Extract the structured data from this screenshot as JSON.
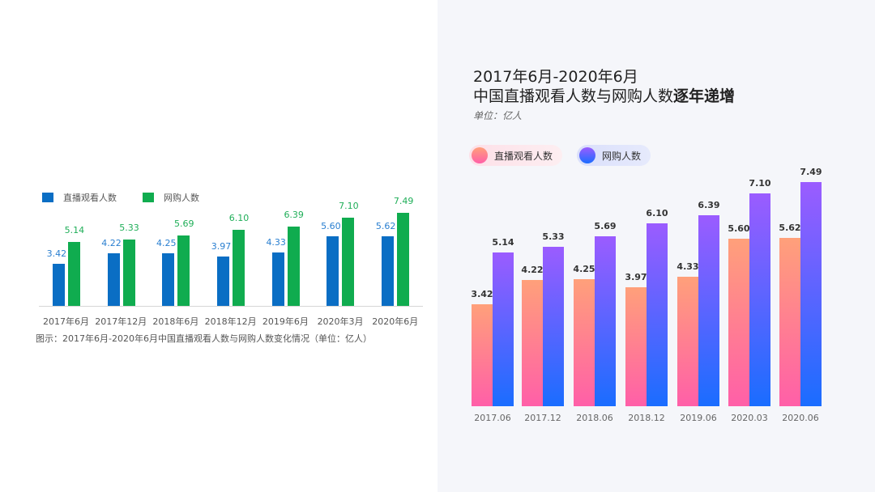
{
  "left_chart": {
    "legend": [
      {
        "label": "直播观看人数",
        "color": "#0a6ec4"
      },
      {
        "label": "网购人数",
        "color": "#10ac4f"
      }
    ],
    "value_colors": {
      "live": "#2a7fd0",
      "shop": "#1fae58"
    },
    "caption": "图示：2017年6月-2020年6月中国直播观看人数与网购人数变化情况（单位：亿人）"
  },
  "right_chart": {
    "title_line1": "2017年6月-2020年6月",
    "title_line2_normal": "中国直播观看人数与网购人数",
    "title_line2_bold": "逐年递增",
    "unit": "单位：亿人",
    "legend": [
      {
        "label": "直播观看人数",
        "gradient_top": "#ffa07a",
        "gradient_bottom": "#ff5fa8",
        "pill_bg": "#fde4ea"
      },
      {
        "label": "网购人数",
        "gradient_top": "#9b5cff",
        "gradient_bottom": "#1a6dff",
        "pill_bg": "#dfe4fb"
      }
    ]
  },
  "chart_data": [
    {
      "type": "bar",
      "title": "",
      "categories": [
        "2017年6月",
        "2017年12月",
        "2018年6月",
        "2018年12月",
        "2019年6月",
        "2020年3月",
        "2020年6月"
      ],
      "series": [
        {
          "name": "直播观看人数",
          "values": [
            "3.42",
            "4.22",
            "4.25",
            "3.97",
            "4.33",
            "5.60",
            "5.62"
          ]
        },
        {
          "name": "网购人数",
          "values": [
            "5.14",
            "5.33",
            "5.69",
            "6.10",
            "6.39",
            "7.10",
            "7.49"
          ]
        }
      ],
      "xlabel": "",
      "ylabel": "",
      "caption": "图示：2017年6月-2020年6月中国直播观看人数与网购人数变化情况（单位：亿人）",
      "legend_position": "top-left",
      "grid": false
    },
    {
      "type": "bar",
      "title": "2017年6月-2020年6月 中国直播观看人数与网购人数逐年递增",
      "subtitle": "单位：亿人",
      "categories": [
        "2017.06",
        "2017.12",
        "2018.06",
        "2018.12",
        "2019.06",
        "2020.03",
        "2020.06"
      ],
      "series": [
        {
          "name": "直播观看人数",
          "values": [
            "3.42",
            "4.22",
            "4.25",
            "3.97",
            "4.33",
            "5.60",
            "5.62"
          ]
        },
        {
          "name": "网购人数",
          "values": [
            "5.14",
            "5.33",
            "5.69",
            "6.10",
            "6.39",
            "7.10",
            "7.49"
          ]
        }
      ],
      "xlabel": "",
      "ylabel": "",
      "legend_position": "top-left",
      "grid": false
    }
  ]
}
